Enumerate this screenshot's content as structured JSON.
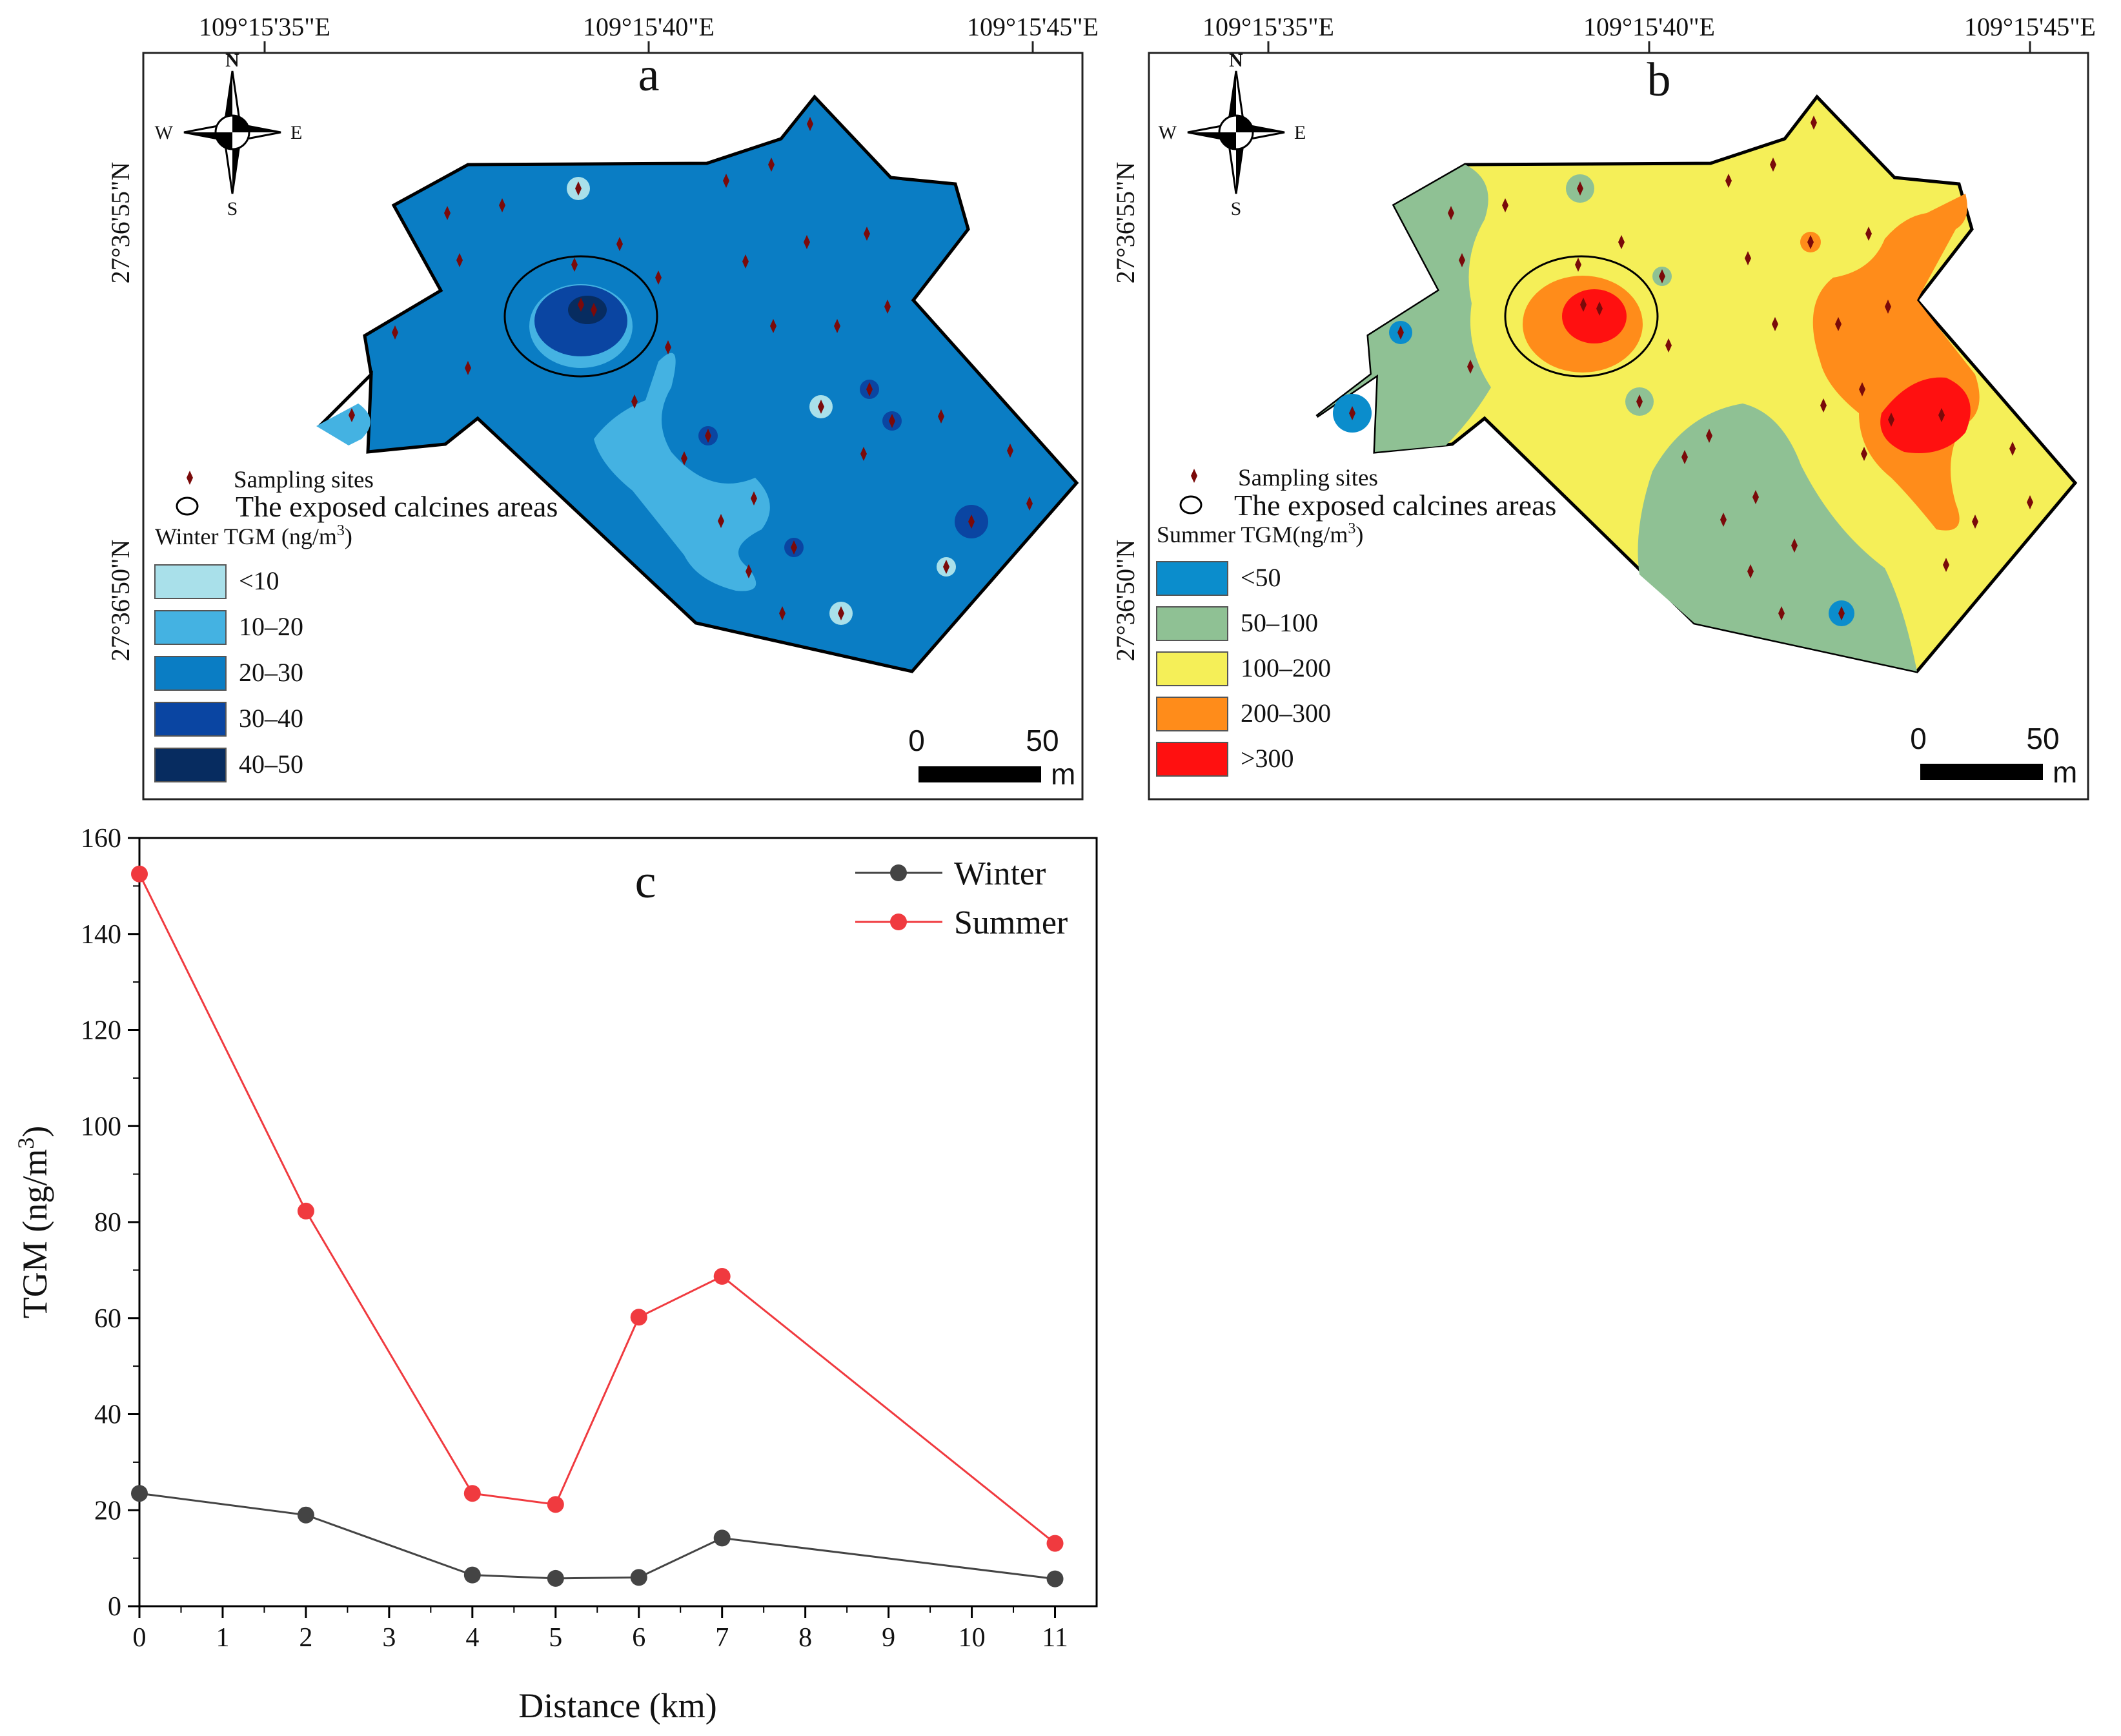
{
  "panel_a": {
    "letter": "a",
    "top_coords": [
      "109°15'35\"E",
      "109°15'40\"E",
      "109°15'45\"E"
    ],
    "left_coords": [
      "27°36'55\"N",
      "27°36'50\"N"
    ],
    "compass": {
      "n": "N",
      "s": "S",
      "e": "E",
      "w": "W"
    },
    "legend_sites": "Sampling sites",
    "legend_calcines": "The exposed calcines areas",
    "legend_title": "Winter TGM (ng/m",
    "legend_title_sup": "3",
    "legend_title_end": ")",
    "classes": [
      {
        "label": "<10",
        "color": "#a9e0ea"
      },
      {
        "label": "10–20",
        "color": "#44b2e2"
      },
      {
        "label": "20–30",
        "color": "#0a7dc4"
      },
      {
        "label": "30–40",
        "color": "#0a45a2"
      },
      {
        "label": "40–50",
        "color": "#072c60"
      }
    ],
    "scale_start": "0",
    "scale_end": "50",
    "scale_unit": "m"
  },
  "panel_b": {
    "letter": "b",
    "top_coords": [
      "109°15'35\"E",
      "109°15'40\"E",
      "109°15'45\"E"
    ],
    "left_coords": [
      "27°36'55\"N",
      "27°36'50\"N"
    ],
    "compass": {
      "n": "N",
      "s": "S",
      "e": "E",
      "w": "W"
    },
    "legend_sites": "Sampling sites",
    "legend_calcines": "The exposed calcines areas",
    "legend_title": "Summer TGM(ng/m",
    "legend_title_sup": "3",
    "legend_title_end": ")",
    "classes": [
      {
        "label": "<50",
        "color": "#0b8dcc"
      },
      {
        "label": "50–100",
        "color": "#8fc194"
      },
      {
        "label": "100–200",
        "color": "#f5ef58"
      },
      {
        "label": "200–300",
        "color": "#ff8c1a"
      },
      {
        "label": ">300",
        "color": "#ff1010"
      }
    ],
    "scale_start": "0",
    "scale_end": "50",
    "scale_unit": "m"
  },
  "chart_data": {
    "type": "line",
    "panel_letter": "c",
    "x": [
      0,
      2,
      4,
      5,
      6,
      7,
      11
    ],
    "series": [
      {
        "name": "Winter",
        "color": "#444444",
        "values": [
          23.5,
          19,
          6.5,
          5.8,
          6,
          14.2,
          5.7
        ]
      },
      {
        "name": "Summer",
        "color": "#f03a3f",
        "values": [
          152.5,
          82.3,
          23.5,
          21.2,
          60.2,
          68.7,
          13.1
        ]
      }
    ],
    "xticks": [
      "0",
      "1",
      "2",
      "3",
      "4",
      "5",
      "6",
      "7",
      "8",
      "9",
      "10",
      "11"
    ],
    "yticks": [
      "0",
      "20",
      "40",
      "60",
      "80",
      "100",
      "120",
      "140",
      "160"
    ],
    "xlim": [
      0,
      11.5
    ],
    "ylim": [
      0,
      160
    ],
    "xlabel": "Distance (km)",
    "ylabel": "TGM (ng/m",
    "ylabel_sup": "3",
    "ylabel_end": ")",
    "legend_placement": "top-right",
    "grid": false
  }
}
